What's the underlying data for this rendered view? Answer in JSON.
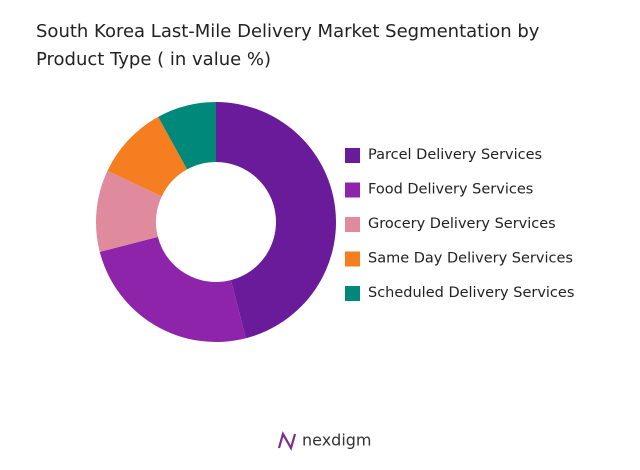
{
  "chart_data": {
    "type": "donut",
    "title": "South Korea Last-Mile Delivery Market Segmentation by Product Type ( in value %)",
    "categories": [
      "Parcel Delivery Services",
      "Food Delivery Services",
      "Grocery Delivery Services",
      "Same Day Delivery Services",
      "Scheduled Delivery Services"
    ],
    "values": [
      46,
      25,
      11,
      10,
      8
    ],
    "colors": [
      "#6a1b9a",
      "#8e24aa",
      "#e08a9e",
      "#f57f20",
      "#00897b"
    ],
    "legend": "right"
  },
  "footer": {
    "logo": "nexdigm"
  }
}
